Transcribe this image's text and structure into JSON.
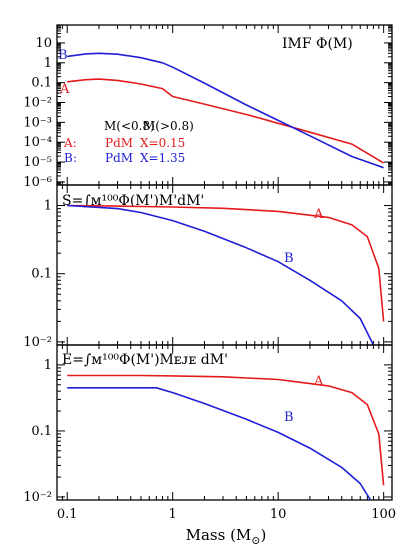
{
  "colors": {
    "A": "#e41a1c",
    "B": "#1f1fd6",
    "axis": "#000000"
  },
  "xlabel": "Mass (M",
  "xlabel_sub": "⊙",
  "xlabel_close": ")",
  "x_ticks": [
    "0.1",
    "1",
    "10",
    "100"
  ],
  "chart_data": [
    {
      "type": "line",
      "title": "IMF Φ(M)",
      "xscale": "log",
      "yscale": "log",
      "xlim": [
        0.08,
        120
      ],
      "ylim": [
        7e-07,
        80
      ],
      "y_ticks": [
        {
          "value": 10,
          "label": "10"
        },
        {
          "value": 1,
          "label": "1"
        },
        {
          "value": 0.1,
          "label": "0.1"
        },
        {
          "value": 0.01,
          "label": "10⁻²"
        },
        {
          "value": 0.001,
          "label": "10⁻³"
        },
        {
          "value": 0.0001,
          "label": "10⁻⁴"
        },
        {
          "value": 1e-05,
          "label": "10⁻⁵"
        },
        {
          "value": 1e-06,
          "label": "10⁻⁶"
        }
      ],
      "series": [
        {
          "name": "A",
          "color": "#e41a1c",
          "x": [
            0.1,
            0.15,
            0.2,
            0.3,
            0.5,
            0.8,
            1,
            2,
            5,
            10,
            20,
            50,
            100
          ],
          "y": [
            0.11,
            0.14,
            0.15,
            0.13,
            0.085,
            0.05,
            0.02,
            0.0083,
            0.0025,
            0.0009,
            0.00032,
            8e-05,
            9e-06
          ]
        },
        {
          "name": "B",
          "color": "#1f1fd6",
          "x": [
            0.1,
            0.15,
            0.2,
            0.3,
            0.5,
            0.8,
            1,
            2,
            5,
            10,
            20,
            50,
            100
          ],
          "y": [
            2.1,
            2.8,
            3.0,
            2.7,
            1.8,
            1.0,
            0.6,
            0.095,
            0.0075,
            0.00125,
            0.00021,
            1.9e-05,
            5.2e-06
          ]
        }
      ],
      "annotations": {
        "header_low": "M(<0.8)",
        "header_high": "M(>0.8)",
        "rows": [
          {
            "series": "A:",
            "low": "PdM",
            "high": "X=0.15"
          },
          {
            "series": "B:",
            "low": "PdM",
            "high": "X=1.35"
          }
        ]
      }
    },
    {
      "type": "line",
      "title": "S=∫ᴍ¹⁰⁰Φ(M')M'dM'",
      "xscale": "log",
      "yscale": "log",
      "xlim": [
        0.08,
        120
      ],
      "ylim": [
        0.009,
        2
      ],
      "y_ticks": [
        {
          "value": 1,
          "label": "1"
        },
        {
          "value": 0.1,
          "label": "0.1"
        },
        {
          "value": 0.01,
          "label": "10⁻²"
        }
      ],
      "series": [
        {
          "name": "A",
          "color": "#e41a1c",
          "x": [
            0.1,
            0.3,
            1,
            3,
            10,
            30,
            50,
            70,
            90,
            100
          ],
          "y": [
            1.0,
            0.98,
            0.95,
            0.91,
            0.82,
            0.67,
            0.52,
            0.35,
            0.12,
            0.02
          ]
        },
        {
          "name": "B",
          "color": "#1f1fd6",
          "x": [
            0.1,
            0.3,
            0.5,
            1,
            2,
            5,
            10,
            20,
            40,
            60,
            80
          ],
          "y": [
            1.0,
            0.9,
            0.79,
            0.6,
            0.42,
            0.24,
            0.15,
            0.08,
            0.04,
            0.022,
            0.009
          ]
        }
      ]
    },
    {
      "type": "line",
      "title": "E=∫ᴍ¹⁰⁰Φ(M')Mᴇᴊᴇ dM'",
      "xscale": "log",
      "yscale": "log",
      "xlim": [
        0.08,
        120
      ],
      "ylim": [
        0.009,
        2
      ],
      "y_ticks": [
        {
          "value": 1,
          "label": "1"
        },
        {
          "value": 0.1,
          "label": "0.1"
        },
        {
          "value": 0.01,
          "label": "10⁻²"
        }
      ],
      "series": [
        {
          "name": "A",
          "color": "#e41a1c",
          "x": [
            0.1,
            0.5,
            1,
            3,
            10,
            30,
            50,
            70,
            90,
            100
          ],
          "y": [
            0.69,
            0.69,
            0.68,
            0.66,
            0.6,
            0.48,
            0.38,
            0.25,
            0.09,
            0.015
          ]
        },
        {
          "name": "B",
          "color": "#1f1fd6",
          "x": [
            0.1,
            0.7,
            1,
            2,
            5,
            10,
            20,
            40,
            60,
            75
          ],
          "y": [
            0.45,
            0.45,
            0.38,
            0.26,
            0.15,
            0.095,
            0.055,
            0.028,
            0.016,
            0.009
          ]
        }
      ]
    }
  ]
}
